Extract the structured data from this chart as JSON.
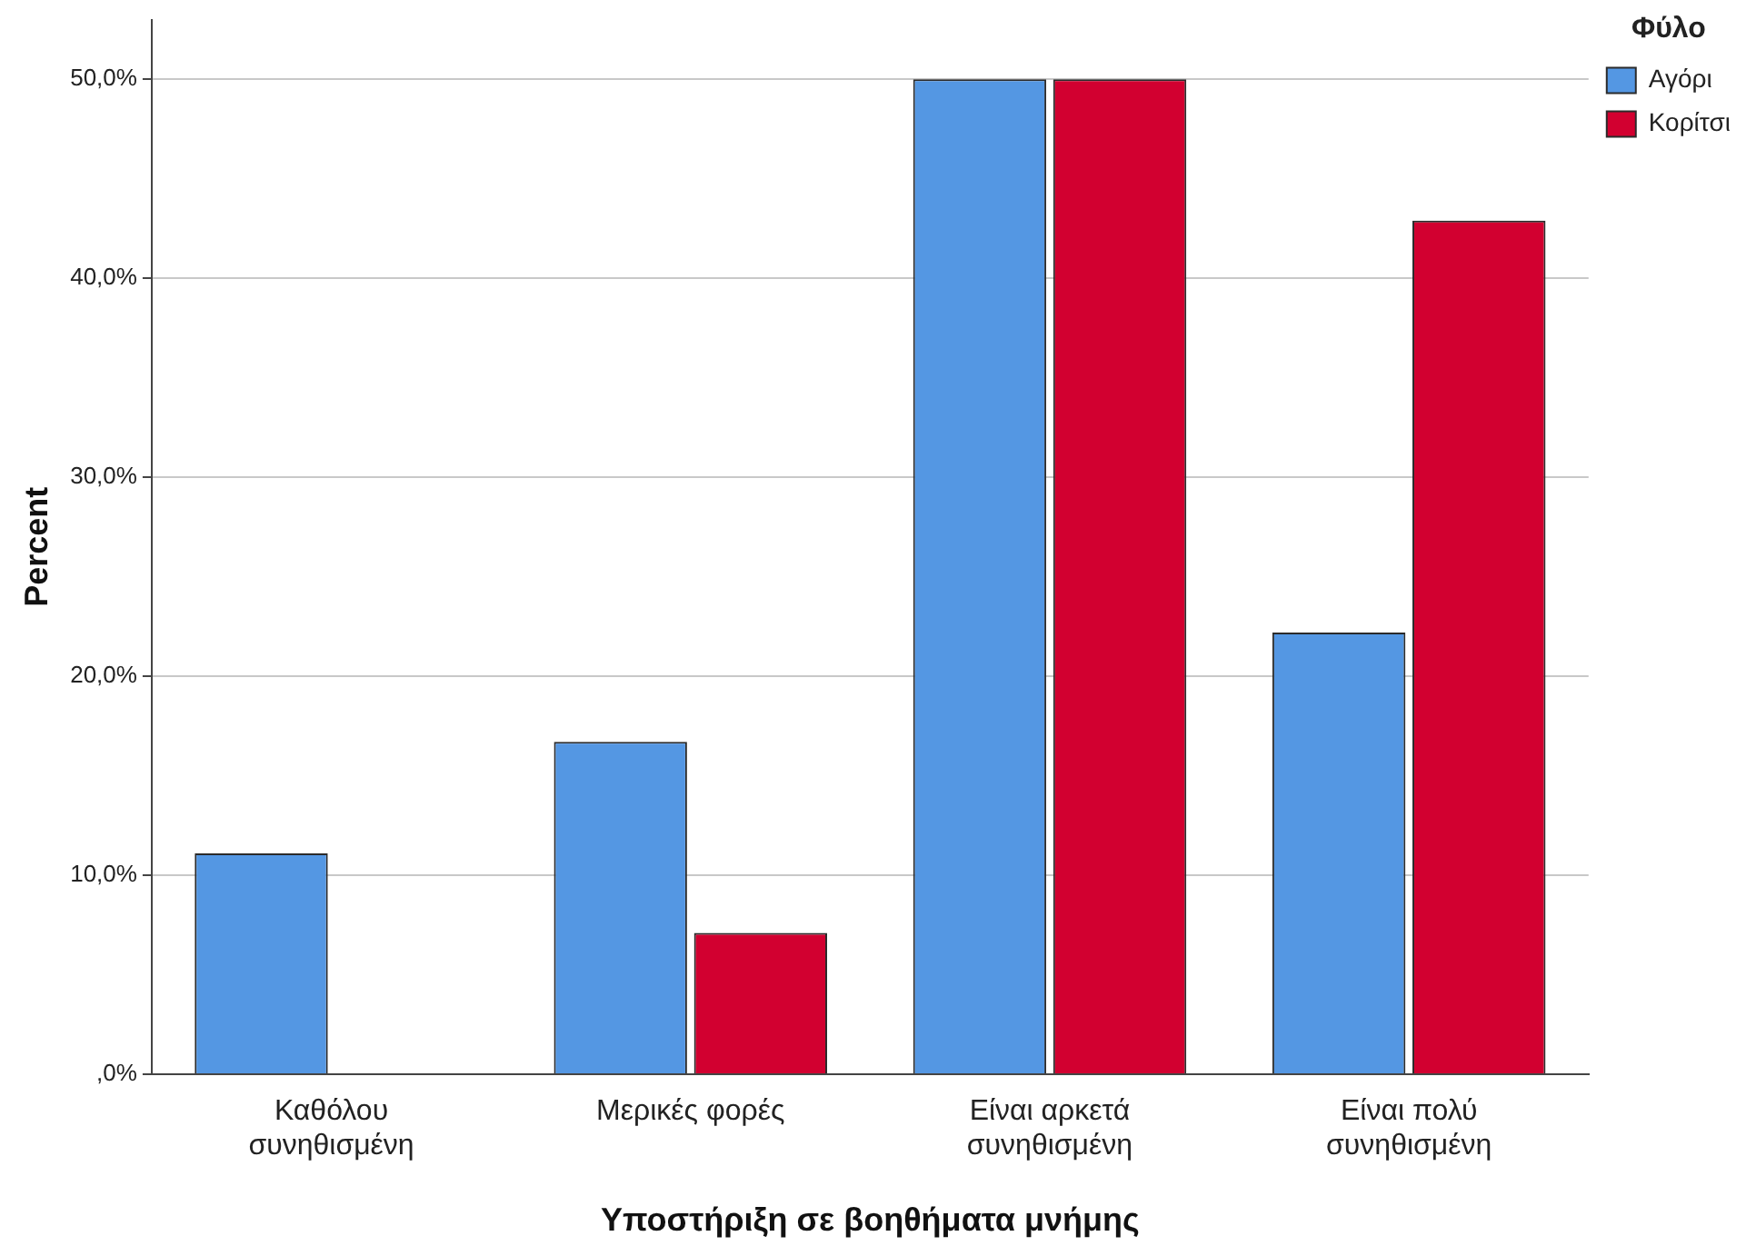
{
  "chart_data": {
    "type": "bar",
    "xlabel": "Υποστήριξη σε βοηθήματα μνήμης",
    "ylabel": "Percent",
    "legend_title": "Φύλο",
    "categories": [
      [
        "Καθόλου",
        "συνηθισμένη"
      ],
      [
        "Μερικές φορές"
      ],
      [
        "Είναι αρκετά",
        "συνηθισμένη"
      ],
      [
        "Είναι πολύ",
        "συνηθισμένη"
      ]
    ],
    "series": [
      {
        "name": "Αγόρι",
        "color": "#5497e3",
        "values": [
          11.1,
          16.7,
          50,
          22.2
        ]
      },
      {
        "name": "Κορίτσι",
        "color": "#d20030",
        "values": [
          0,
          7.1,
          50,
          42.9
        ]
      }
    ],
    "ylim": [
      0,
      53
    ],
    "yticks": [
      {
        "value": 0,
        "label": ",0%"
      },
      {
        "value": 10,
        "label": "10,0%"
      },
      {
        "value": 20,
        "label": "20,0%"
      },
      {
        "value": 30,
        "label": "30,0%"
      },
      {
        "value": 40,
        "label": "40,0%"
      },
      {
        "value": 50,
        "label": "50,0%"
      }
    ],
    "grid": "y",
    "legend": "top right"
  }
}
